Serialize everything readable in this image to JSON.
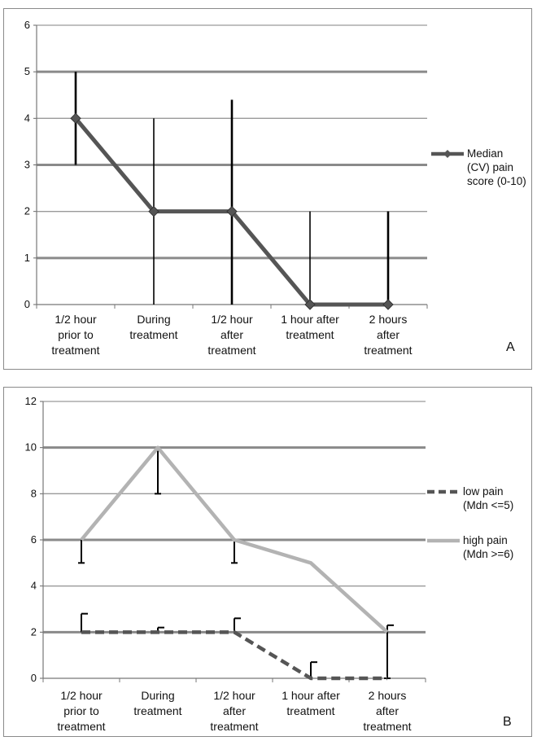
{
  "chart_data": [
    {
      "type": "line",
      "panel_label": "A",
      "categories": [
        [
          "1/2 hour",
          "prior to",
          "treatment"
        ],
        [
          "During",
          "treatment"
        ],
        [
          "1/2 hour",
          "after",
          "treatment"
        ],
        [
          "1 hour after",
          "treatment"
        ],
        [
          "2 hours",
          "after",
          "treatment"
        ]
      ],
      "ylim": [
        0,
        6
      ],
      "yticks": [
        0,
        1,
        2,
        3,
        4,
        5,
        6
      ],
      "grid": true,
      "legend_position": "right",
      "series": [
        {
          "name": [
            "Median",
            "(CV) pain",
            "score (0-10)"
          ],
          "values": [
            4,
            2,
            2,
            0,
            0
          ],
          "error_low": [
            3,
            0,
            0,
            0,
            0
          ],
          "error_high": [
            5,
            4,
            4.4,
            2,
            2
          ],
          "color": "#555555",
          "dash": false,
          "marker": "diamond"
        }
      ]
    },
    {
      "type": "line",
      "panel_label": "B",
      "categories": [
        [
          "1/2 hour",
          "prior to",
          "treatment"
        ],
        [
          "During",
          "treatment"
        ],
        [
          "1/2 hour",
          "after",
          "treatment"
        ],
        [
          "1 hour after",
          "treatment"
        ],
        [
          "2 hours",
          "after",
          "treatment"
        ]
      ],
      "ylim": [
        0,
        12
      ],
      "yticks": [
        0,
        2,
        4,
        6,
        8,
        10,
        12
      ],
      "grid": true,
      "legend_position": "right",
      "series": [
        {
          "name": [
            "low pain",
            "(Mdn <=5)"
          ],
          "values": [
            2,
            2,
            2,
            0,
            0
          ],
          "error_high": [
            2.8,
            2.2,
            2.6,
            0.7,
            null
          ],
          "color": "#555555",
          "dash": true,
          "marker": "none"
        },
        {
          "name": [
            "high pain",
            "(Mdn >=6)"
          ],
          "values": [
            6,
            10,
            6,
            5,
            2
          ],
          "error_low": [
            5,
            8,
            5,
            null,
            0
          ],
          "error_high": [
            null,
            null,
            null,
            null,
            2.3
          ],
          "color": "#b3b3b3",
          "dash": false,
          "marker": "none"
        }
      ]
    }
  ]
}
